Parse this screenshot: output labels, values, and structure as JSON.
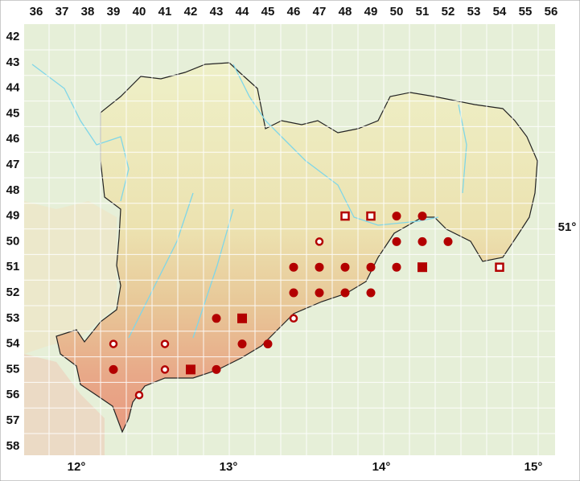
{
  "column_labels": [
    36,
    37,
    38,
    39,
    40,
    41,
    42,
    43,
    44,
    45,
    46,
    47,
    48,
    49,
    50,
    51,
    52,
    53,
    54,
    55,
    56
  ],
  "row_labels": [
    42,
    43,
    44,
    45,
    46,
    47,
    48,
    49,
    50,
    51,
    52,
    53,
    54,
    55,
    56,
    57,
    58
  ],
  "longitude_labels": [
    "12°",
    "13°",
    "14°",
    "15°"
  ],
  "latitude_labels": [
    "51°"
  ],
  "markers": [
    {
      "col": 48,
      "row": 49,
      "symbol": "open-square"
    },
    {
      "col": 49,
      "row": 49,
      "symbol": "open-square"
    },
    {
      "col": 50,
      "row": 49,
      "symbol": "dot"
    },
    {
      "col": 51,
      "row": 49,
      "symbol": "dot"
    },
    {
      "col": 47,
      "row": 50,
      "symbol": "ring"
    },
    {
      "col": 50,
      "row": 50,
      "symbol": "dot"
    },
    {
      "col": 51,
      "row": 50,
      "symbol": "dot"
    },
    {
      "col": 52,
      "row": 50,
      "symbol": "dot"
    },
    {
      "col": 46,
      "row": 51,
      "symbol": "dot"
    },
    {
      "col": 47,
      "row": 51,
      "symbol": "dot"
    },
    {
      "col": 48,
      "row": 51,
      "symbol": "dot"
    },
    {
      "col": 49,
      "row": 51,
      "symbol": "dot"
    },
    {
      "col": 50,
      "row": 51,
      "symbol": "dot"
    },
    {
      "col": 51,
      "row": 51,
      "symbol": "square"
    },
    {
      "col": 54,
      "row": 51,
      "symbol": "open-square"
    },
    {
      "col": 46,
      "row": 52,
      "symbol": "dot"
    },
    {
      "col": 47,
      "row": 52,
      "symbol": "dot"
    },
    {
      "col": 48,
      "row": 52,
      "symbol": "dot"
    },
    {
      "col": 49,
      "row": 52,
      "symbol": "dot"
    },
    {
      "col": 43,
      "row": 53,
      "symbol": "dot"
    },
    {
      "col": 44,
      "row": 53,
      "symbol": "square"
    },
    {
      "col": 46,
      "row": 53,
      "symbol": "ring"
    },
    {
      "col": 39,
      "row": 54,
      "symbol": "ring"
    },
    {
      "col": 41,
      "row": 54,
      "symbol": "ring"
    },
    {
      "col": 44,
      "row": 54,
      "symbol": "dot"
    },
    {
      "col": 45,
      "row": 54,
      "symbol": "dot"
    },
    {
      "col": 39,
      "row": 55,
      "symbol": "dot"
    },
    {
      "col": 41,
      "row": 55,
      "symbol": "ring"
    },
    {
      "col": 42,
      "row": 55,
      "symbol": "square"
    },
    {
      "col": 43,
      "row": 55,
      "symbol": "dot"
    },
    {
      "col": 40,
      "row": 56,
      "symbol": "ring"
    }
  ]
}
